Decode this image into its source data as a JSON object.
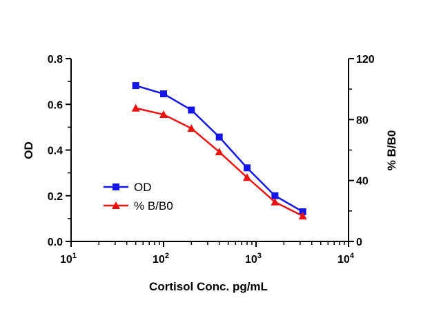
{
  "chart_data": {
    "type": "line",
    "title": "",
    "xlabel": "Cortisol Conc. pg/mL",
    "xscale": "log",
    "xlim": [
      10,
      10000
    ],
    "xticks": [
      {
        "value": 10,
        "base": "10",
        "exp": "1"
      },
      {
        "value": 100,
        "base": "10",
        "exp": "2"
      },
      {
        "value": 1000,
        "base": "10",
        "exp": "3"
      },
      {
        "value": 10000,
        "base": "10",
        "exp": "4"
      }
    ],
    "ylabel": "OD",
    "ylim": [
      0,
      0.8
    ],
    "yticks": [
      "0.0",
      "0.2",
      "0.4",
      "0.6",
      "0.8"
    ],
    "y2label": "% B/B0",
    "y2lim": [
      0,
      120
    ],
    "y2ticks": [
      "0",
      "40",
      "80",
      "120"
    ],
    "legend_position": "lower-left",
    "series": [
      {
        "name": "OD",
        "axis": "left",
        "color": "#1515e8",
        "marker": "square",
        "x": [
          50,
          100,
          200,
          400,
          800,
          1600,
          3200
        ],
        "y": [
          0.682,
          0.646,
          0.575,
          0.457,
          0.322,
          0.2,
          0.13
        ]
      },
      {
        "name": "% B/B0",
        "axis": "right",
        "color": "#ee1111",
        "marker": "triangle",
        "x": [
          50,
          100,
          200,
          400,
          800,
          1600,
          3200
        ],
        "y": [
          87.5,
          83.3,
          74.2,
          58.8,
          42.0,
          25.9,
          16.7
        ]
      }
    ]
  }
}
